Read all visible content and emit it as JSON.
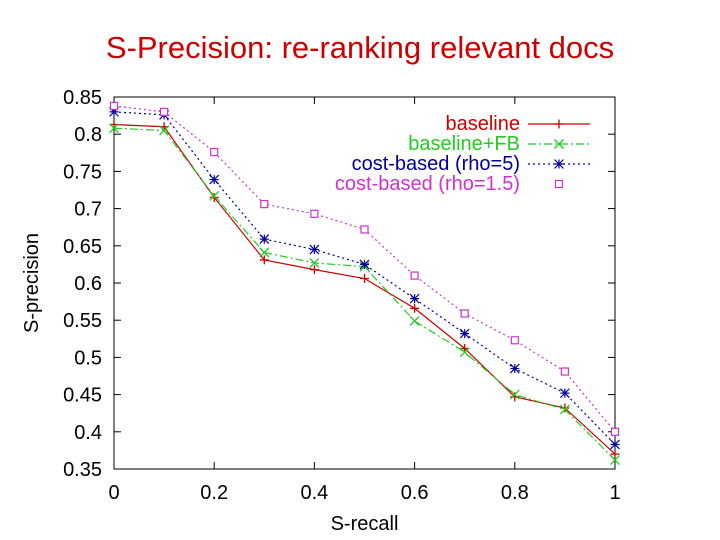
{
  "slide": {
    "title": "S-Precision: re-ranking relevant docs"
  },
  "chart_data": {
    "type": "line",
    "title": "",
    "xlabel": "S-recall",
    "ylabel": "S-precision",
    "xlim": [
      0,
      1
    ],
    "ylim": [
      0.35,
      0.85
    ],
    "grid": false,
    "legend_position": "top-right",
    "x": [
      0,
      0.1,
      0.2,
      0.3,
      0.4,
      0.5,
      0.6,
      0.7,
      0.8,
      0.9,
      1.0
    ],
    "xticks": [
      0,
      0.2,
      0.4,
      0.6,
      0.8,
      1
    ],
    "xtick_labels": [
      "0",
      "0.2",
      "0.4",
      "0.6",
      "0.8",
      "1"
    ],
    "yticks": [
      0.35,
      0.4,
      0.45,
      0.5,
      0.55,
      0.6,
      0.65,
      0.7,
      0.75,
      0.8,
      0.85
    ],
    "ytick_labels": [
      "0.35",
      "0.4",
      "0.45",
      "0.5",
      "0.55",
      "0.6",
      "0.65",
      "0.7",
      "0.75",
      "0.8",
      "0.85"
    ],
    "series": [
      {
        "name": "baseline",
        "color": "#cc0000",
        "marker": "plus",
        "dash": "solid",
        "values": [
          0.813,
          0.81,
          0.715,
          0.631,
          0.618,
          0.606,
          0.566,
          0.512,
          0.447,
          0.432,
          0.37
        ]
      },
      {
        "name": "baseline+FB",
        "color": "#22cc22",
        "marker": "cross",
        "dash": "dashdot",
        "values": [
          0.808,
          0.805,
          0.717,
          0.641,
          0.627,
          0.622,
          0.549,
          0.507,
          0.45,
          0.43,
          0.362
        ]
      },
      {
        "name": "cost-based (rho=5)",
        "color": "#000099",
        "marker": "star",
        "dash": "dotted",
        "values": [
          0.83,
          0.826,
          0.739,
          0.659,
          0.645,
          0.625,
          0.579,
          0.532,
          0.485,
          0.452,
          0.383
        ]
      },
      {
        "name": "cost-based (rho=1.5)",
        "color": "#cc33cc",
        "marker": "square",
        "dash": "dotted",
        "values": [
          0.838,
          0.83,
          0.776,
          0.706,
          0.693,
          0.672,
          0.61,
          0.559,
          0.523,
          0.481,
          0.4
        ]
      }
    ]
  }
}
